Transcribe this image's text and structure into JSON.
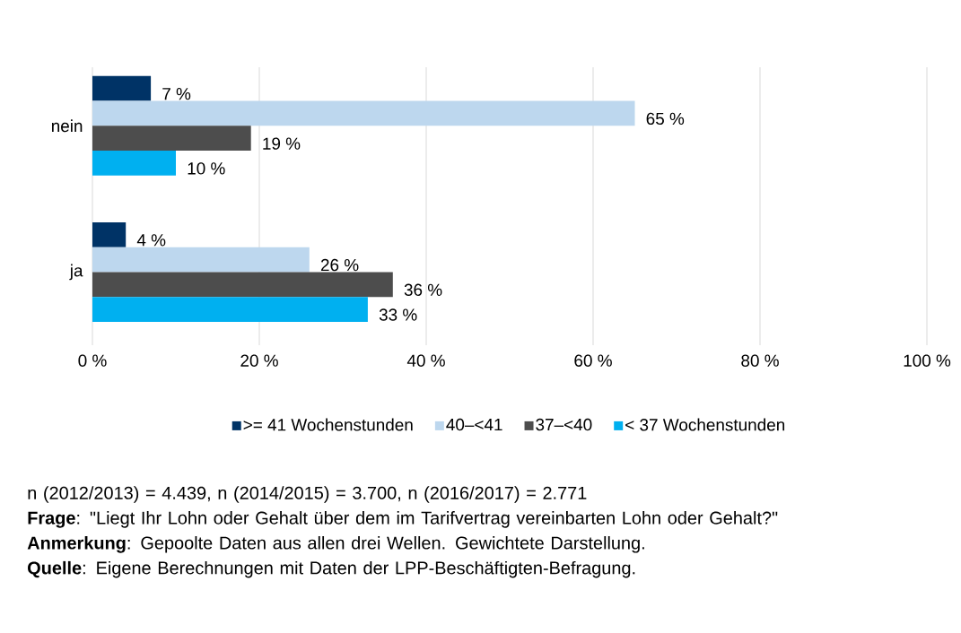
{
  "chart_data": {
    "type": "bar",
    "orientation": "horizontal",
    "categories": [
      "nein",
      "ja"
    ],
    "series": [
      {
        "name": ">= 41 Wochenstunden",
        "color": "#003366",
        "values": [
          7,
          4
        ],
        "value_labels": [
          "7 %",
          "4 %"
        ]
      },
      {
        "name": "40–<41",
        "color": "#bdd7ee",
        "values": [
          65,
          26
        ],
        "value_labels": [
          "65 %",
          "26 %"
        ]
      },
      {
        "name": "37–<40",
        "color": "#4d4d4d",
        "values": [
          19,
          36
        ],
        "value_labels": [
          "19 %",
          "36 %"
        ]
      },
      {
        "name": "< 37 Wochenstunden",
        "color": "#00b0f0",
        "values": [
          10,
          33
        ],
        "value_labels": [
          "10 %",
          "33 %"
        ]
      }
    ],
    "xlim": [
      0,
      100
    ],
    "xticks": [
      {
        "value": 0,
        "label": "0 %"
      },
      {
        "value": 20,
        "label": "20 %"
      },
      {
        "value": 40,
        "label": "40 %"
      },
      {
        "value": 60,
        "label": "60 %"
      },
      {
        "value": 80,
        "label": "80 %"
      },
      {
        "value": 100,
        "label": "100 %"
      }
    ],
    "grid": "x",
    "legend": "bottom",
    "annotations": [
      "n (2012/2013) = 4.439, n (2014/2015) = 3.700, n (2016/2017) = 2.771",
      "**Frage**: \"Liegt Ihr Lohn oder Gehalt über dem im Tarifvertrag vereinbarten Lohn oder Gehalt?\"",
      "**Anmerkung**: Gepoolte Daten aus allen drei Wellen. Gewichtete Darstellung.",
      "**Quelle**: Eigene Berechnungen mit Daten der LPP-Beschäftigten-Befragung."
    ]
  }
}
